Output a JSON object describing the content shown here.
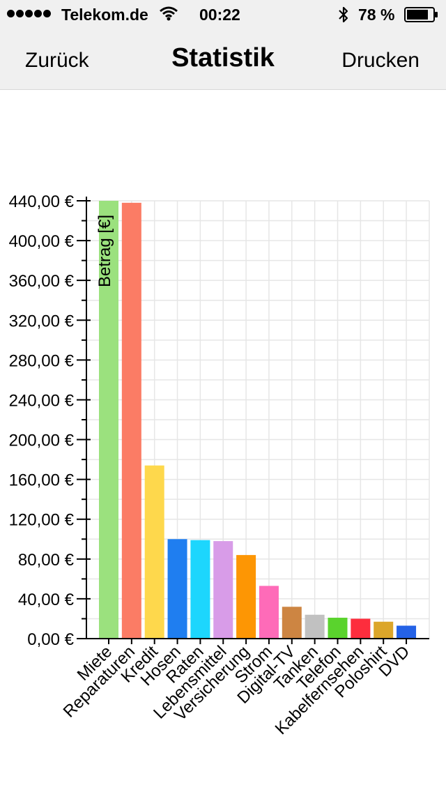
{
  "status_bar": {
    "carrier": "Telekom.de",
    "time": "00:22",
    "battery": "78 %"
  },
  "nav": {
    "back_label": "Zurück",
    "title": "Statistik",
    "print_label": "Drucken"
  },
  "chart_data": {
    "type": "bar",
    "ylabel": "Betrag [€]",
    "ylim": [
      0,
      440
    ],
    "ytick_step": 40,
    "ytick_labels": [
      "0,00 €",
      "40,00 €",
      "80,00 €",
      "120,00 €",
      "160,00 €",
      "200,00 €",
      "240,00 €",
      "280,00 €",
      "320,00 €",
      "360,00 €",
      "400,00 €",
      "440,00 €"
    ],
    "grid": true,
    "categories": [
      "Miete",
      "Reparaturen",
      "Kredit",
      "Hosen",
      "Raten",
      "Lebensmittel",
      "Versicherung",
      "Strom",
      "Digital-TV",
      "Tanken",
      "Telefon",
      "Kabelfernsehen",
      "Poloshirt",
      "DVD"
    ],
    "values": [
      440,
      438,
      174,
      100,
      99,
      98,
      84,
      53,
      32,
      24,
      21,
      20,
      17,
      13
    ],
    "colors": [
      "#9be17e",
      "#fb7c65",
      "#fed84c",
      "#1f7ef0",
      "#1dd6fd",
      "#d89ce8",
      "#fd9604",
      "#fe6bb8",
      "#cd8542",
      "#c1c1c1",
      "#5ad32d",
      "#fd2d3d",
      "#dca62a",
      "#2462e6"
    ]
  }
}
